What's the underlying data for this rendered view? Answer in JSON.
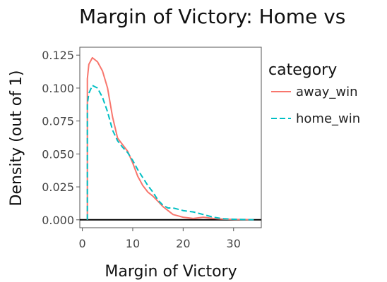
{
  "chart_data": {
    "type": "line",
    "title": "Margin of Victory: Home vs",
    "xlabel": "Margin of Victory",
    "ylabel": "Density (out of 1)",
    "xlim": [
      -0.5,
      35.5
    ],
    "ylim": [
      -0.006,
      0.131
    ],
    "x_ticks": [
      0,
      10,
      20,
      30
    ],
    "x_tick_labels": [
      "0",
      "10",
      "20",
      "30"
    ],
    "y_ticks": [
      0,
      0.025,
      0.05,
      0.075,
      0.1,
      0.125
    ],
    "y_tick_labels": [
      "0.000",
      "0.025",
      "0.050",
      "0.075",
      "0.100",
      "0.125"
    ],
    "grid": false,
    "legend": {
      "title": "category",
      "placement": "right"
    },
    "baseline": 0,
    "series": [
      {
        "name": "away_win",
        "color": "#F8766D",
        "dash": "solid",
        "x": [
          1,
          1,
          1.3,
          2,
          3,
          4,
          5,
          6,
          7,
          8,
          9,
          10,
          11,
          12,
          13,
          14,
          15,
          16,
          17,
          18,
          19,
          20,
          22,
          24,
          26,
          28,
          30,
          32,
          34
        ],
        "y": [
          0,
          0.107,
          0.118,
          0.123,
          0.12,
          0.113,
          0.1,
          0.078,
          0.062,
          0.057,
          0.052,
          0.043,
          0.033,
          0.026,
          0.021,
          0.018,
          0.014,
          0.01,
          0.007,
          0.004,
          0.003,
          0.002,
          0.001,
          0.002,
          0.001,
          0.0005,
          0.0003,
          0.0002,
          0.0001
        ]
      },
      {
        "name": "home_win",
        "color": "#00BFC4",
        "dash": "dashed",
        "x": [
          1,
          1,
          1.3,
          2,
          3,
          4,
          5,
          6,
          7,
          8,
          9,
          10,
          11,
          12,
          13,
          14,
          15,
          16,
          17,
          18,
          19,
          20,
          22,
          24,
          26,
          28,
          30,
          32,
          34
        ],
        "y": [
          0,
          0.088,
          0.096,
          0.102,
          0.1,
          0.093,
          0.082,
          0.068,
          0.06,
          0.055,
          0.051,
          0.045,
          0.038,
          0.032,
          0.026,
          0.021,
          0.015,
          0.011,
          0.009,
          0.009,
          0.008,
          0.007,
          0.006,
          0.004,
          0.002,
          0.0008,
          0.0004,
          0.0002,
          0.0001
        ]
      }
    ]
  }
}
